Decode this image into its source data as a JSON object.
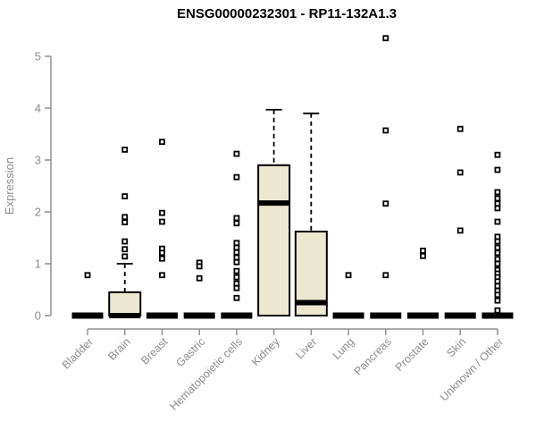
{
  "chart_data": {
    "type": "boxplot",
    "title": "ENSG00000232301 - RP11-132A1.3",
    "xlabel": "",
    "ylabel": "Expression",
    "ylim": [
      0,
      5
    ],
    "yticks": [
      0,
      1,
      2,
      3,
      4,
      5
    ],
    "grid": "off",
    "legend": "none",
    "categories": [
      "Bladder",
      "Brain",
      "Breast",
      "Gastric",
      "Hematopoietic cells",
      "Kidney",
      "Liver",
      "Lung",
      "Pancreas",
      "Prostate",
      "Skin",
      "Unknown / Other"
    ],
    "boxes": [
      {
        "category": "Bladder",
        "q1": 0,
        "median": 0,
        "q3": 0,
        "whisker_low": 0,
        "whisker_high": 0,
        "outliers": [
          0.78
        ]
      },
      {
        "category": "Brain",
        "q1": 0,
        "median": 0,
        "q3": 0.45,
        "whisker_low": 0,
        "whisker_high": 1.0,
        "outliers": [
          3.2,
          2.3,
          1.9,
          1.8,
          1.43,
          1.28,
          1.14
        ]
      },
      {
        "category": "Breast",
        "q1": 0,
        "median": 0,
        "q3": 0,
        "whisker_low": 0,
        "whisker_high": 0,
        "outliers": [
          3.35,
          1.98,
          1.81,
          1.29,
          1.21,
          1.1,
          0.78
        ]
      },
      {
        "category": "Gastric",
        "q1": 0,
        "median": 0,
        "q3": 0,
        "whisker_low": 0,
        "whisker_high": 0,
        "outliers": [
          1.02,
          0.95,
          0.72
        ]
      },
      {
        "category": "Hematopoietic cells",
        "q1": 0,
        "median": 0,
        "q3": 0,
        "whisker_low": 0,
        "whisker_high": 0,
        "outliers": [
          3.12,
          2.67,
          1.88,
          1.78,
          1.4,
          1.31,
          1.22,
          1.12,
          1.03,
          0.86,
          0.74,
          0.62,
          0.53,
          0.34
        ]
      },
      {
        "category": "Kidney",
        "q1": 0,
        "median": 2.17,
        "q3": 2.9,
        "whisker_low": 0,
        "whisker_high": 3.97,
        "outliers": []
      },
      {
        "category": "Liver",
        "q1": 0,
        "median": 0.25,
        "q3": 1.62,
        "whisker_low": 0,
        "whisker_high": 3.9,
        "outliers": []
      },
      {
        "category": "Lung",
        "q1": 0,
        "median": 0,
        "q3": 0,
        "whisker_low": 0,
        "whisker_high": 0,
        "outliers": [
          0.78
        ]
      },
      {
        "category": "Pancreas",
        "q1": 0,
        "median": 0,
        "q3": 0,
        "whisker_low": 0,
        "whisker_high": 0,
        "outliers": [
          5.35,
          3.57,
          2.16,
          0.78
        ]
      },
      {
        "category": "Prostate",
        "q1": 0,
        "median": 0,
        "q3": 0,
        "whisker_low": 0,
        "whisker_high": 0,
        "outliers": [
          1.25,
          1.15
        ]
      },
      {
        "category": "Skin",
        "q1": 0,
        "median": 0,
        "q3": 0,
        "whisker_low": 0,
        "whisker_high": 0,
        "outliers": [
          3.6,
          2.76,
          1.64
        ]
      },
      {
        "category": "Unknown / Other",
        "q1": 0,
        "median": 0,
        "q3": 0,
        "whisker_low": 0,
        "whisker_high": 0,
        "outliers": [
          3.1,
          2.81,
          2.38,
          2.26,
          2.16,
          2.07,
          1.81,
          1.52,
          1.43,
          1.31,
          1.21,
          1.09,
          1.0,
          0.88,
          0.81,
          0.74,
          0.66,
          0.57,
          0.48,
          0.4,
          0.29,
          0.1
        ]
      }
    ],
    "colors": {
      "box_fill": "#EDE8D0",
      "box_stroke": "#000000",
      "median": "#000000",
      "whisker": "#000000",
      "outlier_stroke": "#000000",
      "outlier_fill": "#FFFFFF",
      "axis": "#909090",
      "axis_text": "#8C8C8C",
      "title": "#000000",
      "background": "#FFFFFF"
    }
  }
}
